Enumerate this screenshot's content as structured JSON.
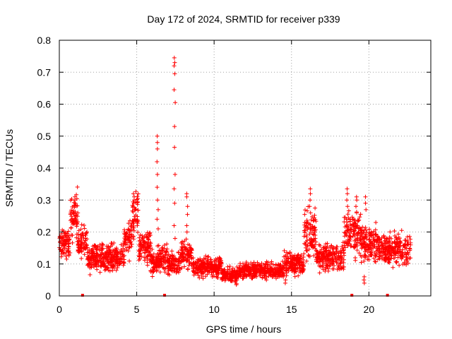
{
  "chart_data": {
    "type": "scatter",
    "title": "Day 172 of 2024, SRMTID for receiver p339",
    "xlabel": "GPS time / hours",
    "ylabel": "SRMTID / TECUs",
    "xlim": [
      0,
      24.0
    ],
    "ylim": [
      0,
      0.8
    ],
    "x_ticks": [
      0,
      5,
      10,
      15,
      20
    ],
    "x_tick_labels": [
      "0",
      "5",
      "10",
      "15",
      "20"
    ],
    "y_ticks": [
      0,
      0.1,
      0.2,
      0.3,
      0.4,
      0.5,
      0.6,
      0.7,
      0.8
    ],
    "y_tick_labels": [
      "0",
      "0.1",
      "0.2",
      "0.3",
      "0.4",
      "0.5",
      "0.6",
      "0.7",
      "0.8"
    ],
    "grid": true,
    "marker": "+",
    "color": "#ff0000",
    "segments": [
      {
        "t0": 0.0,
        "t1": 0.7,
        "mean": 0.165,
        "spread": 0.04
      },
      {
        "t0": 0.7,
        "t1": 1.2,
        "mean": 0.25,
        "spread": 0.06
      },
      {
        "t0": 1.2,
        "t1": 1.8,
        "mean": 0.17,
        "spread": 0.04
      },
      {
        "t0": 1.8,
        "t1": 4.2,
        "mean": 0.12,
        "spread": 0.035
      },
      {
        "t0": 4.2,
        "t1": 4.7,
        "mean": 0.18,
        "spread": 0.05
      },
      {
        "t0": 4.7,
        "t1": 5.1,
        "mean": 0.25,
        "spread": 0.06
      },
      {
        "t0": 5.1,
        "t1": 5.9,
        "mean": 0.15,
        "spread": 0.04
      },
      {
        "t0": 5.9,
        "t1": 6.3,
        "mean": 0.1,
        "spread": 0.035
      },
      {
        "t0": 6.3,
        "t1": 7.0,
        "mean": 0.12,
        "spread": 0.035
      },
      {
        "t0": 7.0,
        "t1": 7.8,
        "mean": 0.1,
        "spread": 0.03
      },
      {
        "t0": 7.8,
        "t1": 8.6,
        "mean": 0.13,
        "spread": 0.04
      },
      {
        "t0": 8.6,
        "t1": 10.5,
        "mean": 0.09,
        "spread": 0.025
      },
      {
        "t0": 10.5,
        "t1": 11.6,
        "mean": 0.065,
        "spread": 0.02
      },
      {
        "t0": 11.6,
        "t1": 14.5,
        "mean": 0.08,
        "spread": 0.02
      },
      {
        "t0": 14.5,
        "t1": 15.8,
        "mean": 0.1,
        "spread": 0.03
      },
      {
        "t0": 15.8,
        "t1": 16.6,
        "mean": 0.19,
        "spread": 0.06
      },
      {
        "t0": 16.6,
        "t1": 18.4,
        "mean": 0.12,
        "spread": 0.035
      },
      {
        "t0": 18.4,
        "t1": 19.5,
        "mean": 0.2,
        "spread": 0.06
      },
      {
        "t0": 19.5,
        "t1": 20.6,
        "mean": 0.16,
        "spread": 0.05
      },
      {
        "t0": 20.6,
        "t1": 22.7,
        "mean": 0.145,
        "spread": 0.04
      }
    ],
    "spikes": [
      {
        "x": 6.35,
        "y": [
          0.5,
          0.48,
          0.46,
          0.42,
          0.38,
          0.34,
          0.3,
          0.27,
          0.24,
          0.21
        ]
      },
      {
        "x": 7.45,
        "y": [
          0.745,
          0.73,
          0.72,
          0.695,
          0.645,
          0.605,
          0.53,
          0.465,
          0.38,
          0.335,
          0.29,
          0.22,
          0.18
        ]
      },
      {
        "x": 8.25,
        "y": [
          0.32,
          0.31,
          0.28,
          0.255,
          0.22,
          0.2
        ]
      },
      {
        "x": 4.8,
        "y": [
          0.32,
          0.31,
          0.3,
          0.28
        ]
      },
      {
        "x": 1.0,
        "y": [
          0.31,
          0.3,
          0.29
        ]
      },
      {
        "x": 16.2,
        "y": [
          0.335,
          0.32,
          0.3,
          0.28,
          0.26
        ]
      },
      {
        "x": 18.6,
        "y": [
          0.335,
          0.32,
          0.3,
          0.28
        ]
      },
      {
        "x": 19.2,
        "y": [
          0.31,
          0.3,
          0.28,
          0.26
        ]
      },
      {
        "x": 19.8,
        "y": [
          0.31,
          0.29,
          0.27
        ]
      },
      {
        "x": 19.7,
        "y": [
          0.06,
          0.05,
          0.04
        ]
      },
      {
        "x": 14.6,
        "y": [
          0.05,
          0.04
        ]
      }
    ],
    "zero_markers": [
      1.5,
      6.8,
      18.9,
      21.2
    ]
  }
}
